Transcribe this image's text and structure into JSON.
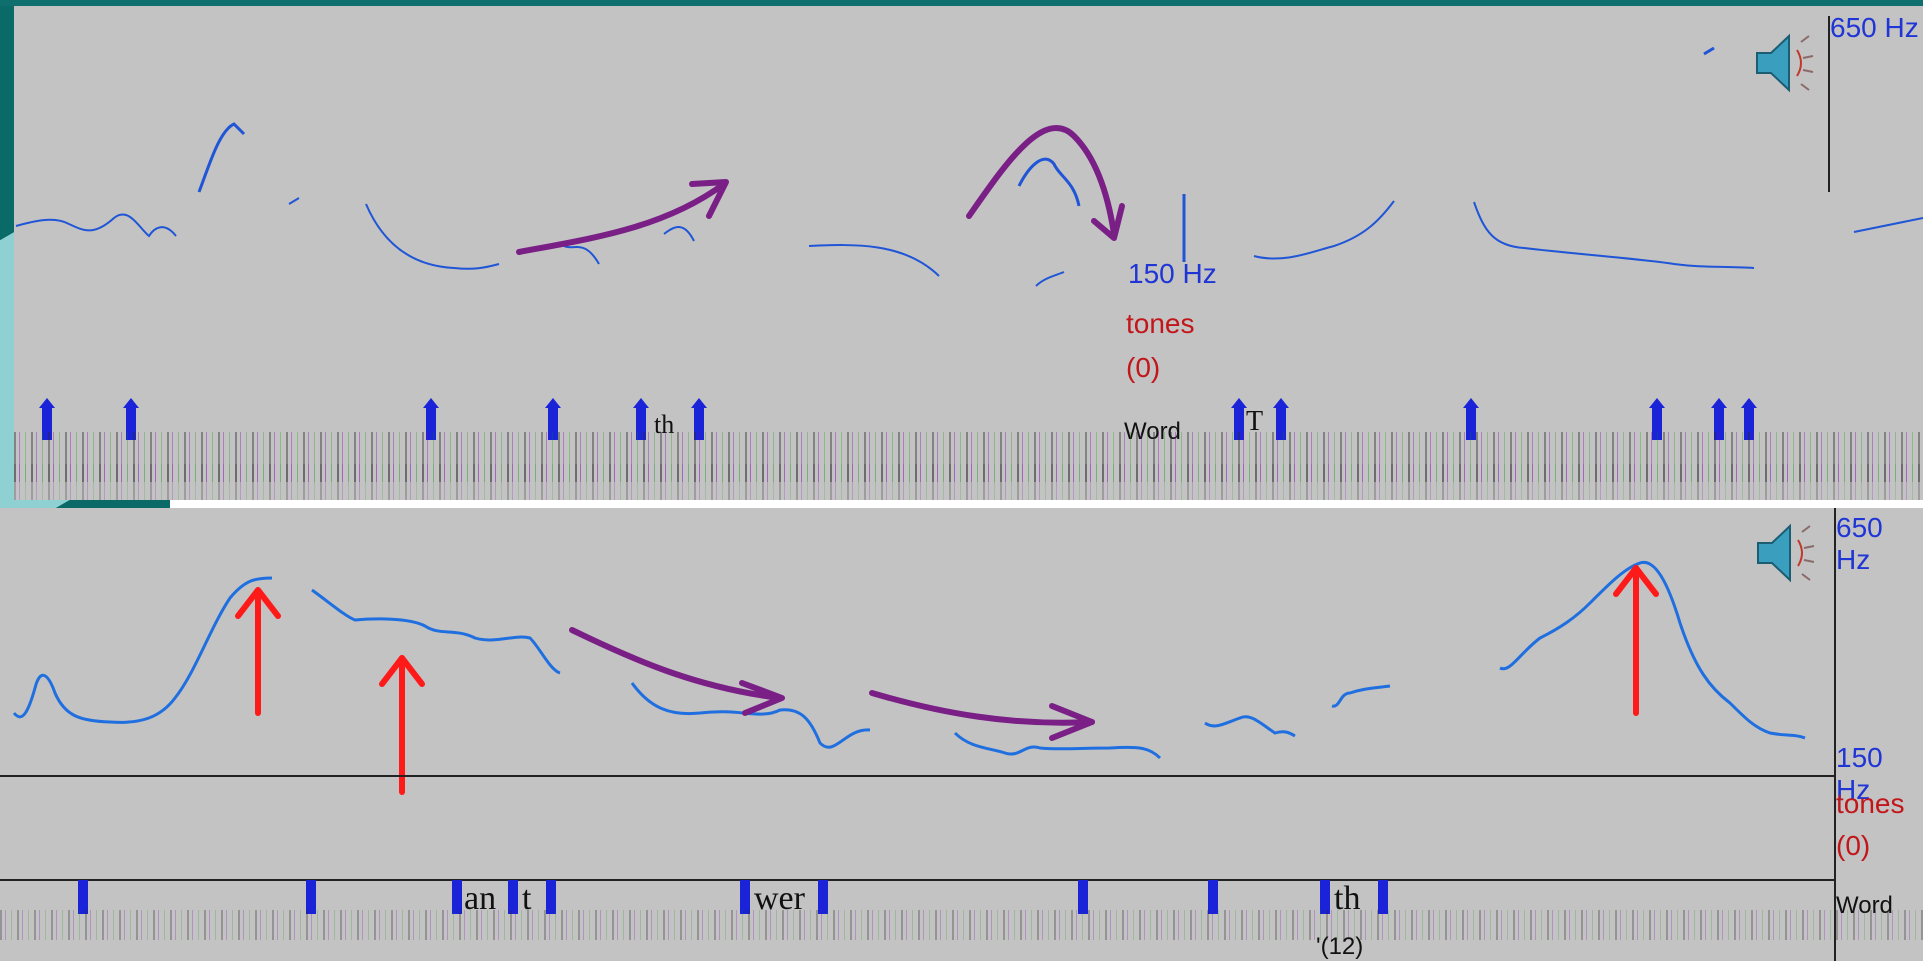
{
  "top_panel": {
    "hz_top": "650 Hz",
    "hz_bottom": "150 Hz",
    "tones_label": "tones",
    "tones_count": "(0)",
    "word_label": "Word",
    "segments": [
      "th",
      "T"
    ]
  },
  "bottom_panel": {
    "hz_top": "650 Hz",
    "hz_bottom": "150 Hz",
    "tones_label": "tones",
    "tones_count": "(0)",
    "word_label": "Word",
    "segments": [
      "an",
      "t",
      "wer",
      "th"
    ],
    "footer_count": "'(12)"
  },
  "icons": {
    "speaker": "speaker-icon"
  },
  "colors": {
    "panel_bg": "#c3c3c3",
    "pitch_curve": "#1f55d6",
    "annotation_arrow_purple": "#7a1f86",
    "annotation_arrow_red": "#ff1a1a",
    "hz_label": "#1f35d6",
    "tones_label": "#c2161a",
    "slide_bg_teal": "#0a6a68"
  }
}
